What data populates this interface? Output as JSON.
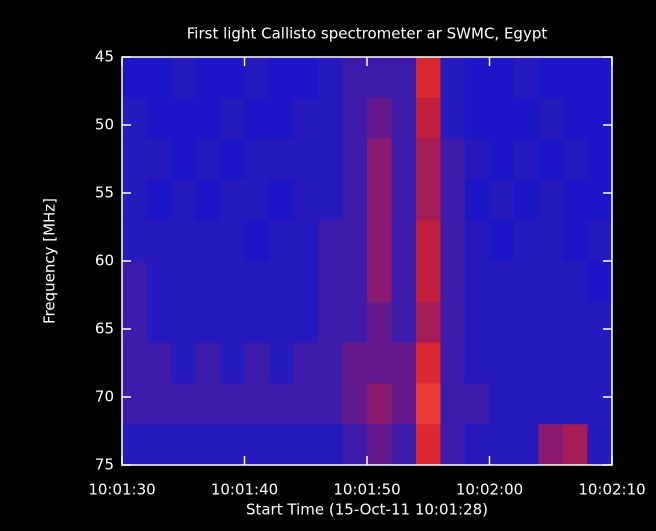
{
  "chart_data": {
    "type": "heatmap",
    "title": "First light Callisto spectrometer ar SWMC, Egypt",
    "xlabel": "Start Time (15-Oct-11 10:01:28)",
    "ylabel": "Frequency [MHz]",
    "xlim": [
      36090,
      36130
    ],
    "xticks": [
      {
        "value": 36090,
        "label": "10:01:30"
      },
      {
        "value": 36100,
        "label": "10:01:40"
      },
      {
        "value": 36110,
        "label": "10:01:50"
      },
      {
        "value": 36120,
        "label": "10:02:00"
      },
      {
        "value": 36130,
        "label": "10:02:10"
      }
    ],
    "ylim": [
      45,
      75
    ],
    "y_reversed": true,
    "yticks": [
      45,
      50,
      55,
      60,
      65,
      70,
      75
    ],
    "x_bins": [
      36090,
      36092,
      36094,
      36096,
      36098,
      36100,
      36102,
      36104,
      36106,
      36108,
      36110,
      36112,
      36114,
      36116,
      36118,
      36120,
      36122,
      36124,
      36126,
      36128,
      36130
    ],
    "y_bins": [
      45,
      48,
      51,
      54,
      57,
      60,
      63,
      66,
      69,
      72,
      75
    ],
    "zlim": [
      0,
      10
    ],
    "colormap": [
      "#1414d2",
      "#2a1ab8",
      "#8a1a70",
      "#d02030",
      "#ff4a3a"
    ],
    "z": [
      [
        1,
        1,
        2,
        1,
        1,
        2,
        1,
        1,
        2,
        3,
        3,
        3,
        8,
        2,
        1,
        1,
        2,
        1,
        1,
        1
      ],
      [
        2,
        1,
        1,
        1,
        2,
        1,
        1,
        2,
        2,
        3,
        4,
        3,
        7,
        2,
        1,
        1,
        1,
        2,
        1,
        1
      ],
      [
        2,
        2,
        1,
        2,
        1,
        2,
        2,
        2,
        2,
        3,
        5,
        3,
        6,
        3,
        2,
        1,
        2,
        1,
        2,
        1
      ],
      [
        2,
        1,
        2,
        1,
        2,
        2,
        1,
        2,
        2,
        3,
        5,
        3,
        6,
        3,
        1,
        2,
        1,
        2,
        1,
        1
      ],
      [
        2,
        2,
        2,
        2,
        2,
        1,
        2,
        2,
        3,
        3,
        5,
        3,
        7,
        3,
        2,
        1,
        2,
        2,
        1,
        2
      ],
      [
        3,
        2,
        2,
        2,
        2,
        2,
        2,
        2,
        3,
        3,
        5,
        3,
        7,
        3,
        2,
        2,
        2,
        2,
        2,
        1
      ],
      [
        3,
        2,
        2,
        2,
        2,
        2,
        2,
        2,
        3,
        3,
        4,
        3,
        6,
        3,
        2,
        2,
        2,
        2,
        2,
        2
      ],
      [
        3,
        3,
        2,
        3,
        2,
        3,
        2,
        3,
        3,
        4,
        4,
        4,
        8,
        3,
        2,
        2,
        2,
        2,
        2,
        2
      ],
      [
        3,
        3,
        3,
        3,
        3,
        3,
        3,
        3,
        3,
        4,
        5,
        4,
        9,
        3,
        3,
        2,
        2,
        2,
        2,
        2
      ],
      [
        2,
        2,
        2,
        2,
        2,
        2,
        2,
        2,
        2,
        3,
        4,
        3,
        8,
        3,
        2,
        2,
        2,
        5,
        6,
        2
      ]
    ]
  }
}
